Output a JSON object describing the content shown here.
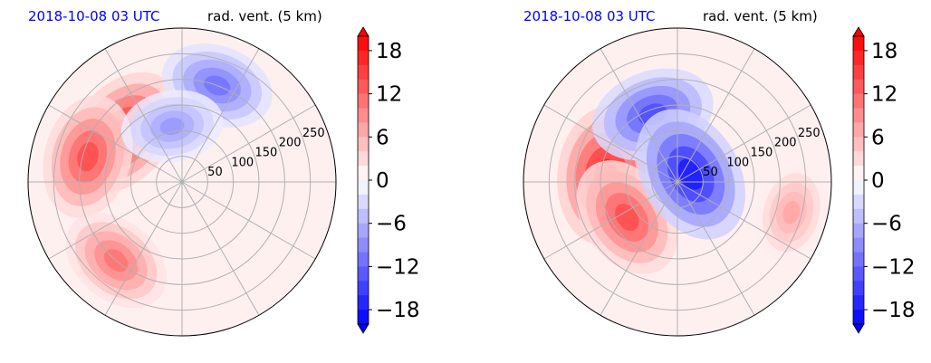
{
  "chart_data": [
    {
      "type": "heatmap",
      "projection": "polar",
      "title_left": "2018-10-08 03 UTC",
      "title_right": "rad. vent. (5 km)",
      "title_left_color": "#0000ff",
      "radial_ticks": [
        50,
        100,
        150,
        200,
        250
      ],
      "rmax": 300,
      "angular_gridlines_deg": [
        0,
        30,
        60,
        90,
        120,
        150,
        180,
        210,
        240,
        270,
        300,
        330
      ],
      "colorbar": {
        "ticks": [
          18,
          12,
          6,
          0,
          -6,
          -12,
          -18
        ],
        "tick_labels": [
          "18",
          "12",
          "6",
          "0",
          "−6",
          "−12",
          "−18"
        ],
        "vmin": -20,
        "vmax": 20,
        "extend": "both",
        "levels": 20,
        "colormap": "bwr",
        "color_high": "#ff0000",
        "color_mid": "#ffffff",
        "color_low": "#0000ff"
      },
      "features": [
        {
          "sign": "positive",
          "strength": 0.85,
          "r": 150,
          "theta_deg": 140
        },
        {
          "sign": "positive",
          "strength": 0.7,
          "r": 190,
          "theta_deg": 165
        },
        {
          "sign": "positive",
          "strength": 0.55,
          "r": 200,
          "theta_deg": 230
        },
        {
          "sign": "negative",
          "strength": 0.55,
          "r": 200,
          "theta_deg": 70
        },
        {
          "sign": "negative",
          "strength": 0.4,
          "r": 110,
          "theta_deg": 100
        }
      ]
    },
    {
      "type": "heatmap",
      "projection": "polar",
      "title_left": "2018-10-08 03 UTC",
      "title_right": "rad. vent. (5 km)",
      "title_left_color": "#0000ff",
      "radial_ticks": [
        50,
        100,
        150,
        200,
        250
      ],
      "rmax": 300,
      "angular_gridlines_deg": [
        0,
        30,
        60,
        90,
        120,
        150,
        180,
        210,
        240,
        270,
        300,
        330
      ],
      "colorbar": {
        "ticks": [
          18,
          12,
          6,
          0,
          -6,
          -12,
          -18
        ],
        "tick_labels": [
          "18",
          "12",
          "6",
          "0",
          "−6",
          "−12",
          "−18"
        ],
        "vmin": -20,
        "vmax": 20,
        "extend": "both",
        "levels": 20,
        "colormap": "bwr",
        "color_high": "#ff0000",
        "color_mid": "#ffffff",
        "color_low": "#0000ff"
      },
      "features": [
        {
          "sign": "positive",
          "strength": 0.9,
          "r": 140,
          "theta_deg": 175
        },
        {
          "sign": "positive",
          "strength": 0.7,
          "r": 120,
          "theta_deg": 215
        },
        {
          "sign": "negative",
          "strength": 0.7,
          "r": 140,
          "theta_deg": 110
        },
        {
          "sign": "negative",
          "strength": 0.9,
          "r": 30,
          "theta_deg": 30
        },
        {
          "sign": "positive",
          "strength": 0.35,
          "r": 230,
          "theta_deg": 345
        }
      ]
    }
  ]
}
